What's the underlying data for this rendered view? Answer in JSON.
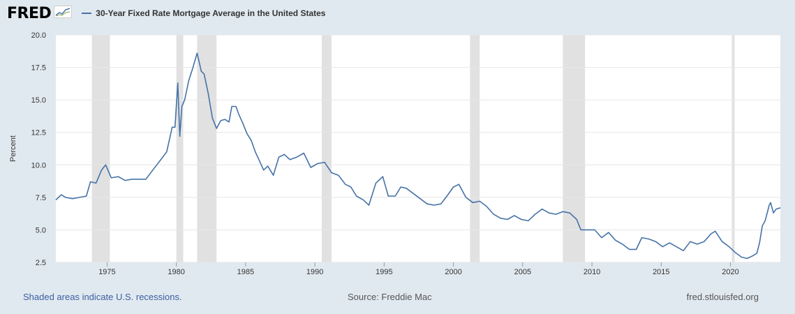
{
  "header": {
    "logo_text": "FRED",
    "legend_label": "30-Year Fixed Rate Mortgage Average in the United States"
  },
  "footer": {
    "recession_note": "Shaded areas indicate U.S. recessions.",
    "source": "Source: Freddie Mac",
    "site": "fred.stlouisfed.org"
  },
  "colors": {
    "line": "#4572a7",
    "recession": "#e1e1e1",
    "background": "#e1e9f0",
    "plot": "#ffffff",
    "grid": "#e6e6e6"
  },
  "chart_data": {
    "type": "line",
    "title": "30-Year Fixed Rate Mortgage Average in the United States",
    "xlabel": "",
    "ylabel": "Percent",
    "xlim": [
      1971.3,
      2023.6
    ],
    "ylim": [
      2.5,
      20.0
    ],
    "y_ticks": [
      "2.5",
      "5.0",
      "7.5",
      "10.0",
      "12.5",
      "15.0",
      "17.5",
      "20.0"
    ],
    "x_ticks": [
      "1975",
      "1980",
      "1985",
      "1990",
      "1995",
      "2000",
      "2005",
      "2010",
      "2015",
      "2020"
    ],
    "grid": true,
    "recessions": [
      [
        1973.9,
        1975.2
      ],
      [
        1980.0,
        1980.5
      ],
      [
        1981.5,
        1982.9
      ],
      [
        1990.5,
        1991.2
      ],
      [
        2001.2,
        2001.9
      ],
      [
        2007.9,
        2009.5
      ],
      [
        2020.1,
        2020.3
      ]
    ],
    "series": [
      {
        "name": "30-Year Fixed Rate Mortgage Average in the United States",
        "x": [
          1971.3,
          1971.7,
          1972.0,
          1972.5,
          1973.0,
          1973.5,
          1973.8,
          1974.2,
          1974.6,
          1974.9,
          1975.3,
          1975.8,
          1976.3,
          1976.8,
          1977.3,
          1977.8,
          1978.3,
          1978.8,
          1979.3,
          1979.7,
          1979.9,
          1980.1,
          1980.25,
          1980.4,
          1980.6,
          1980.9,
          1981.2,
          1981.5,
          1981.8,
          1982.0,
          1982.3,
          1982.6,
          1982.9,
          1983.2,
          1983.5,
          1983.8,
          1984.0,
          1984.3,
          1984.5,
          1984.8,
          1985.1,
          1985.4,
          1985.7,
          1986.0,
          1986.3,
          1986.6,
          1987.0,
          1987.4,
          1987.8,
          1988.2,
          1988.7,
          1989.2,
          1989.7,
          1990.2,
          1990.7,
          1991.2,
          1991.7,
          1992.2,
          1992.6,
          1993.0,
          1993.5,
          1993.9,
          1994.4,
          1994.9,
          1995.3,
          1995.8,
          1996.2,
          1996.6,
          1997.1,
          1997.6,
          1998.1,
          1998.6,
          1999.1,
          1999.6,
          2000.0,
          2000.4,
          2000.9,
          2001.4,
          2001.9,
          2002.4,
          2002.9,
          2003.4,
          2003.9,
          2004.4,
          2004.9,
          2005.4,
          2005.9,
          2006.4,
          2006.9,
          2007.4,
          2007.9,
          2008.4,
          2008.9,
          2009.2,
          2009.7,
          2010.2,
          2010.7,
          2011.2,
          2011.7,
          2012.2,
          2012.7,
          2013.2,
          2013.6,
          2014.1,
          2014.6,
          2015.1,
          2015.6,
          2016.1,
          2016.6,
          2017.1,
          2017.6,
          2018.1,
          2018.6,
          2018.9,
          2019.4,
          2019.9,
          2020.3,
          2020.8,
          2021.2,
          2021.6,
          2021.9,
          2022.1,
          2022.3,
          2022.5,
          2022.8,
          2022.9,
          2023.1,
          2023.3,
          2023.6
        ],
        "values": [
          7.3,
          7.7,
          7.5,
          7.4,
          7.5,
          7.6,
          8.7,
          8.6,
          9.6,
          10.0,
          9.0,
          9.1,
          8.8,
          8.9,
          8.9,
          8.9,
          9.6,
          10.3,
          11.0,
          12.9,
          12.9,
          16.3,
          12.2,
          14.5,
          15.0,
          16.5,
          17.5,
          18.6,
          17.2,
          17.0,
          15.5,
          13.6,
          12.8,
          13.4,
          13.5,
          13.3,
          14.5,
          14.5,
          13.9,
          13.2,
          12.4,
          11.9,
          11.0,
          10.3,
          9.6,
          9.9,
          9.2,
          10.6,
          10.8,
          10.4,
          10.6,
          10.9,
          9.8,
          10.1,
          10.2,
          9.4,
          9.2,
          8.5,
          8.3,
          7.6,
          7.3,
          6.9,
          8.6,
          9.1,
          7.6,
          7.6,
          8.3,
          8.2,
          7.8,
          7.4,
          7.0,
          6.9,
          7.0,
          7.7,
          8.3,
          8.5,
          7.5,
          7.1,
          7.2,
          6.8,
          6.2,
          5.9,
          5.8,
          6.1,
          5.8,
          5.7,
          6.2,
          6.6,
          6.3,
          6.2,
          6.4,
          6.3,
          5.8,
          5.0,
          5.0,
          5.0,
          4.4,
          4.8,
          4.2,
          3.9,
          3.5,
          3.5,
          4.4,
          4.3,
          4.1,
          3.7,
          4.0,
          3.7,
          3.4,
          4.1,
          3.9,
          4.1,
          4.7,
          4.9,
          4.1,
          3.7,
          3.3,
          2.9,
          2.8,
          3.0,
          3.2,
          4.0,
          5.3,
          5.7,
          6.9,
          7.1,
          6.3,
          6.6,
          6.7
        ]
      }
    ]
  }
}
